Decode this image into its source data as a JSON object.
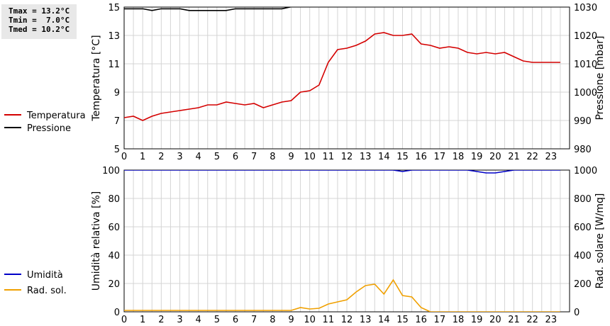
{
  "stats": {
    "tmax": "Tmax = 13.2°C",
    "tmin": "Tmin =  7.0°C",
    "tmed": "Tmed = 10.2°C"
  },
  "chart_data": [
    {
      "type": "line",
      "x_ticks": [
        0,
        1,
        2,
        3,
        4,
        5,
        6,
        7,
        8,
        9,
        10,
        11,
        12,
        13,
        14,
        15,
        16,
        17,
        18,
        19,
        20,
        21,
        22,
        23
      ],
      "xlim": [
        0,
        24
      ],
      "y_left": {
        "label": "Temperatura [°C]",
        "lim": [
          5,
          15
        ],
        "ticks": [
          5,
          7,
          9,
          11,
          13,
          15
        ]
      },
      "y_right": {
        "label": "Pressione [mbar]",
        "lim": [
          980,
          1030
        ],
        "ticks": [
          980,
          990,
          1000,
          1010,
          1020,
          1030
        ]
      },
      "grid": true,
      "legend_placement": "left",
      "series": [
        {
          "name": "Temperatura",
          "axis": "left",
          "color": "#d40000",
          "x": [
            0,
            0.5,
            1,
            1.5,
            2,
            2.5,
            3,
            3.5,
            4,
            4.5,
            5,
            5.5,
            6,
            6.5,
            7,
            7.5,
            8,
            8.5,
            9,
            9.5,
            10,
            10.5,
            11,
            11.5,
            12,
            12.5,
            13,
            13.5,
            14,
            14.5,
            15,
            15.5,
            16,
            16.5,
            17,
            17.5,
            18,
            18.5,
            19,
            19.5,
            20,
            20.5,
            21,
            21.5,
            22,
            22.5,
            23,
            23.5
          ],
          "values": [
            7.2,
            7.3,
            7.0,
            7.3,
            7.5,
            7.6,
            7.7,
            7.8,
            7.9,
            8.1,
            8.1,
            8.3,
            8.2,
            8.1,
            8.2,
            7.9,
            8.1,
            8.3,
            8.4,
            9.0,
            9.1,
            9.5,
            11.1,
            12.0,
            12.1,
            12.3,
            12.6,
            13.1,
            13.2,
            13.0,
            13.0,
            13.1,
            12.4,
            12.3,
            12.1,
            12.2,
            12.1,
            11.8,
            11.7,
            11.8,
            11.7,
            11.8,
            11.5,
            11.2,
            11.1,
            11.1,
            11.1,
            11.1
          ]
        },
        {
          "name": "Pressione",
          "axis": "right",
          "color": "#000000",
          "x": [
            0,
            0.5,
            1,
            1.5,
            2,
            2.5,
            3,
            3.5,
            4,
            4.5,
            5,
            5.5,
            6,
            6.5,
            7,
            7.5,
            8,
            8.5,
            9,
            9.5
          ],
          "values": [
            1029.4,
            1029.4,
            1029.4,
            1028.8,
            1029.4,
            1029.4,
            1029.4,
            1028.8,
            1028.8,
            1028.8,
            1028.8,
            1028.8,
            1029.4,
            1029.4,
            1029.4,
            1029.4,
            1029.4,
            1029.4,
            1030.1,
            1030.1
          ]
        }
      ]
    },
    {
      "type": "line",
      "x_ticks": [
        0,
        1,
        2,
        3,
        4,
        5,
        6,
        7,
        8,
        9,
        10,
        11,
        12,
        13,
        14,
        15,
        16,
        17,
        18,
        19,
        20,
        21,
        22,
        23
      ],
      "xlim": [
        0,
        24
      ],
      "y_left": {
        "label": "Umidità relativa [%]",
        "lim": [
          0,
          100
        ],
        "ticks": [
          0,
          20,
          40,
          60,
          80,
          100
        ]
      },
      "y_right": {
        "label": "Rad. solare [W/mq]",
        "lim": [
          0,
          1000
        ],
        "ticks": [
          0,
          200,
          400,
          600,
          800,
          1000
        ]
      },
      "grid": true,
      "legend_placement": "left",
      "series": [
        {
          "name": "Umidità",
          "axis": "left",
          "color": "#0000c8",
          "x": [
            0,
            14.5,
            15,
            15.5,
            16,
            18.5,
            19,
            19.5,
            20,
            20.5,
            21,
            21.5,
            23.5
          ],
          "values": [
            100,
            100,
            99,
            100,
            100,
            100,
            99,
            98,
            98,
            99,
            100,
            100,
            100
          ]
        },
        {
          "name": "Rad. sol.",
          "axis": "right",
          "color": "#f0a000",
          "x": [
            0,
            9,
            9.5,
            10,
            10.5,
            11,
            11.5,
            12,
            12.5,
            13,
            13.5,
            14,
            14.5,
            15,
            15.5,
            16,
            16.5,
            23.5
          ],
          "values": [
            10,
            10,
            30,
            20,
            25,
            55,
            70,
            85,
            140,
            185,
            195,
            125,
            225,
            115,
            105,
            30,
            0,
            0
          ]
        }
      ]
    }
  ]
}
